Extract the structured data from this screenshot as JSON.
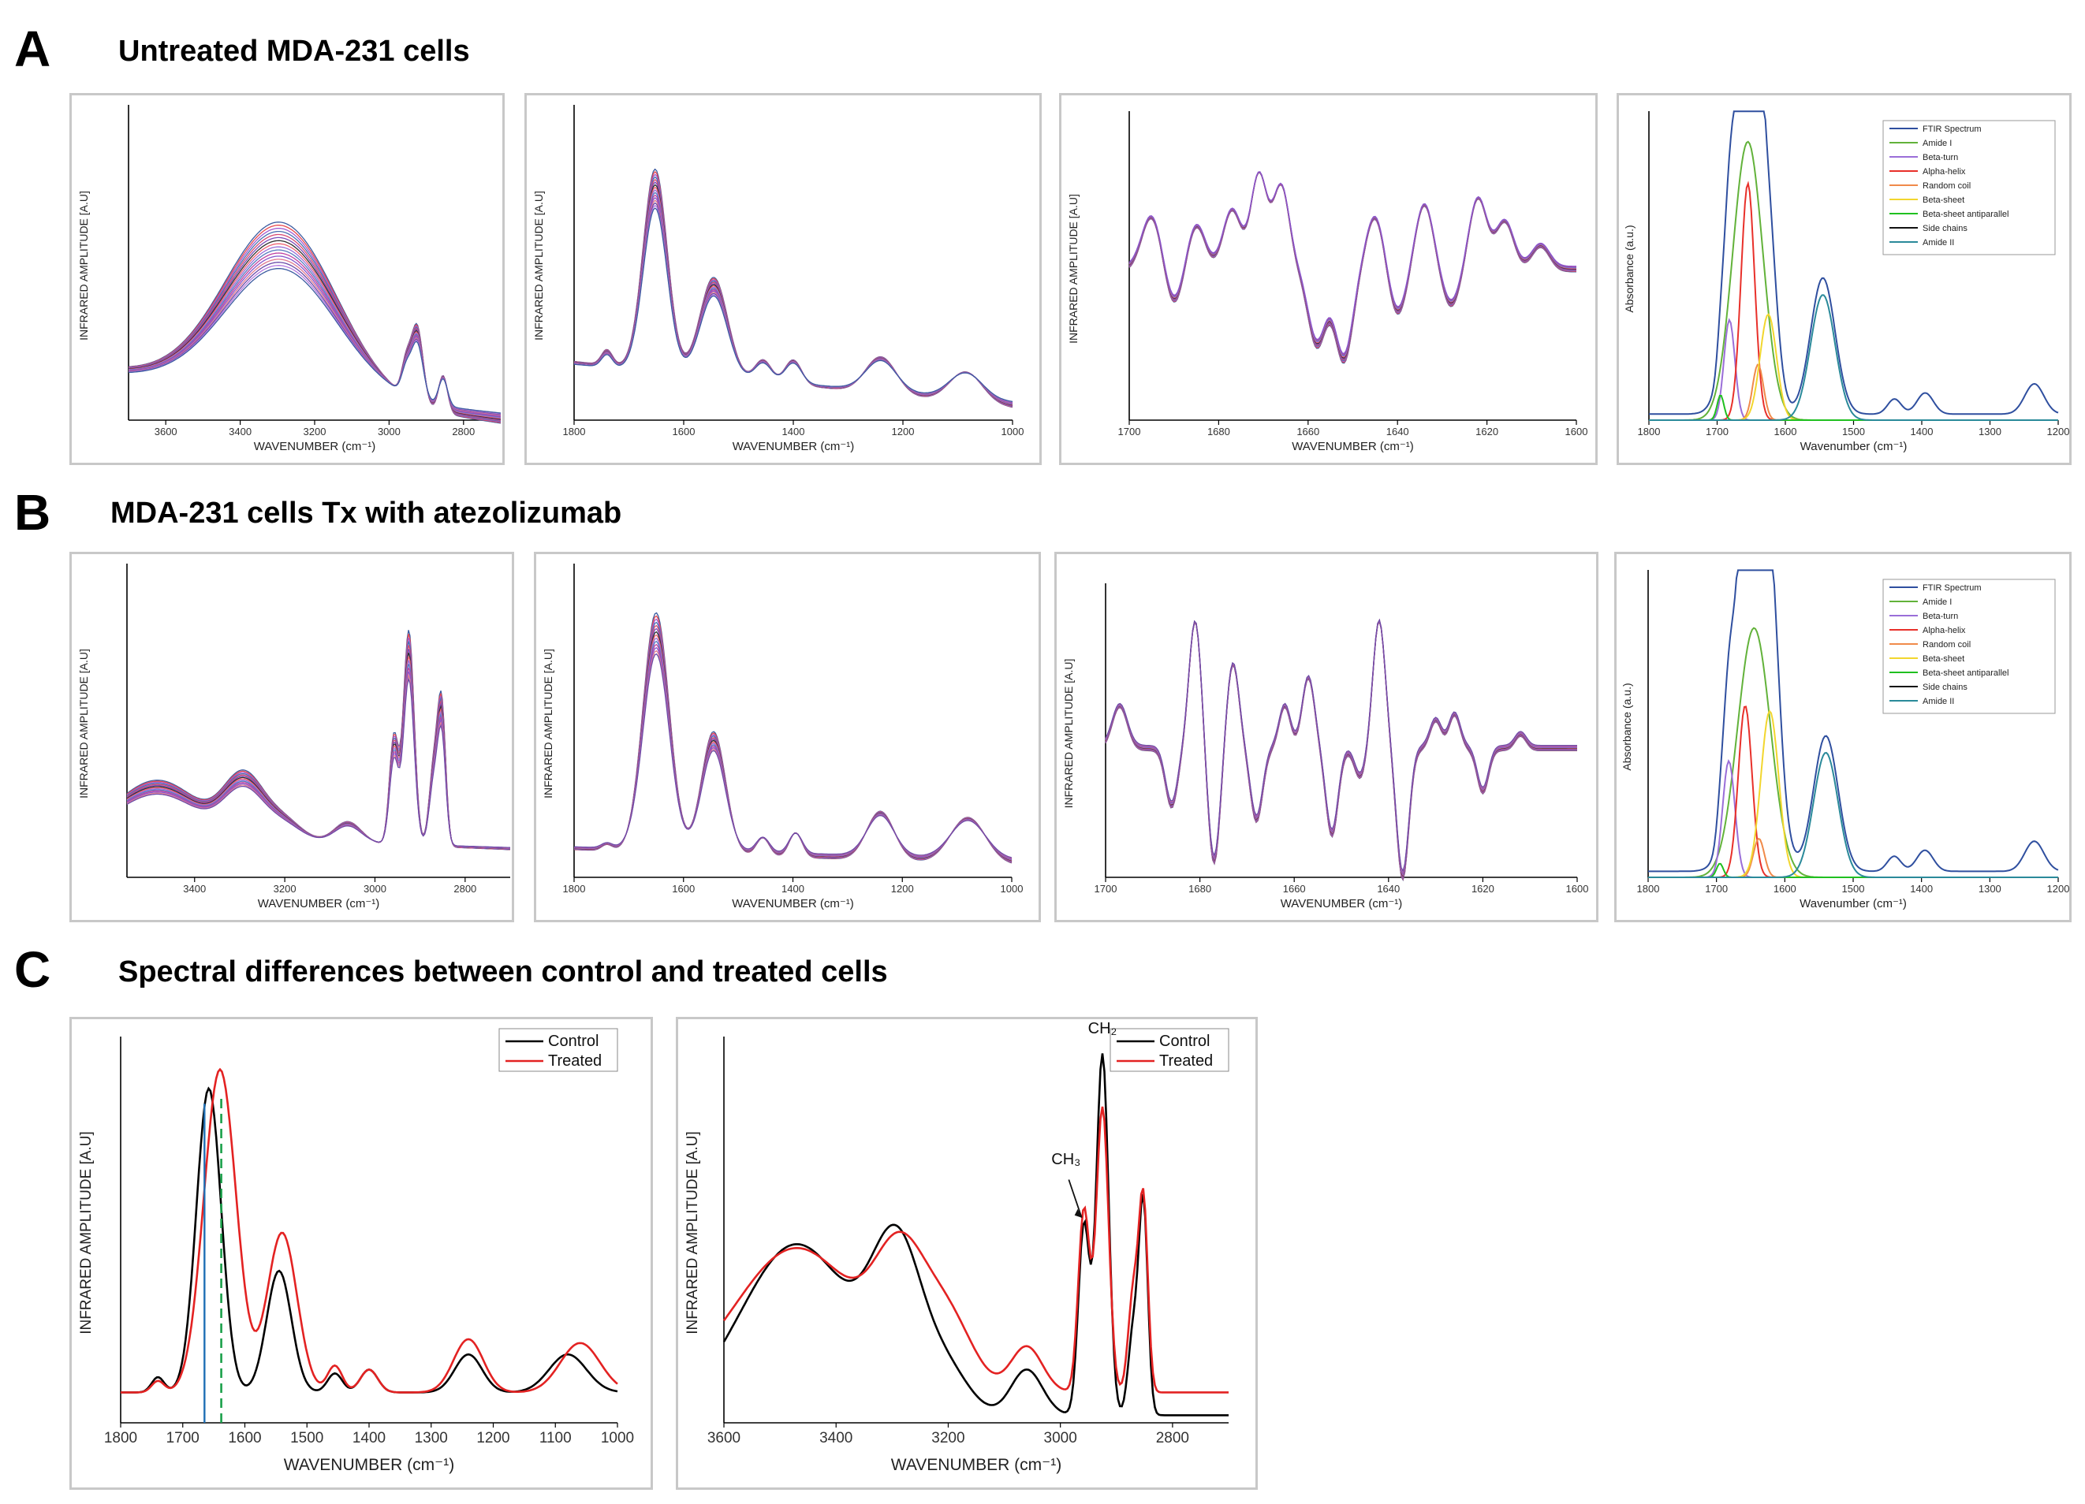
{
  "sections": [
    {
      "letter": "A",
      "title": "Untreated MDA-231 cells"
    },
    {
      "letter": "B",
      "title": "MDA-231 cells Tx with atezolizumab"
    },
    {
      "letter": "C",
      "title": "Spectral differences between control and treated cells"
    }
  ],
  "colors": {
    "spectra_palette": [
      "#3b5ba0",
      "#e8484f",
      "#a05ad0",
      "#4a6fb0",
      "#d84a72",
      "#7a4ab8",
      "#2f2f2f",
      "#f06070",
      "#9a6ed8",
      "#587ac0",
      "#c040a0",
      "#8855cc",
      "#e07a90",
      "#6a4aa8",
      "#b478e0"
    ],
    "control": "#000000",
    "treated": "#e32222",
    "vline_solid": "#1f6fb5",
    "vline_dashed": "#1aa04a"
  },
  "chart_data": [
    {
      "id": "A1",
      "type": "line",
      "title": "",
      "xlabel": "WAVENUMBER (cm⁻¹)",
      "ylabel": "INFRARED AMPLITUDE [A.U]",
      "xlim": [
        3700,
        2700
      ],
      "xticks": [
        3600,
        3400,
        3200,
        3000,
        2800
      ],
      "ylim": [
        0,
        1
      ],
      "n_series": 16,
      "peaks": [
        [
          3290,
          0.55,
          150
        ],
        [
          2955,
          0.1,
          12
        ],
        [
          2925,
          0.25,
          16
        ],
        [
          2855,
          0.12,
          12
        ]
      ],
      "base": [
        0.12,
        -0.05
      ],
      "spread": 0.3
    },
    {
      "id": "A2",
      "type": "line",
      "title": "",
      "xlabel": "WAVENUMBER (cm⁻¹)",
      "ylabel": "INFRARED AMPLITUDE [A.U]",
      "xlim": [
        1800,
        1000
      ],
      "xticks": [
        1800,
        1600,
        1400,
        1200,
        1000
      ],
      "ylim": [
        0,
        1
      ],
      "n_series": 16,
      "peaks": [
        [
          1740,
          0.05,
          10
        ],
        [
          1652,
          0.65,
          22
        ],
        [
          1545,
          0.32,
          25
        ],
        [
          1455,
          0.07,
          15
        ],
        [
          1400,
          0.08,
          15
        ],
        [
          1240,
          0.12,
          28
        ],
        [
          1085,
          0.1,
          30
        ]
      ],
      "base": [
        0.15,
        0.0
      ],
      "spread": 0.2
    },
    {
      "id": "A3",
      "type": "line",
      "title": "",
      "xlabel": "WAVENUMBER (cm⁻¹)",
      "ylabel": "INFRARED AMPLITUDE [A.U]",
      "xlim": [
        1700,
        1600
      ],
      "xticks": [
        1700,
        1680,
        1660,
        1640,
        1620,
        1600
      ],
      "ylim": [
        0,
        1
      ],
      "n_series": 12,
      "peaks": [
        [
          1695,
          0.18,
          2.2
        ],
        [
          1690,
          -0.12,
          2
        ],
        [
          1685,
          0.15,
          2
        ],
        [
          1677,
          0.2,
          2
        ],
        [
          1671,
          0.32,
          1.8
        ],
        [
          1666,
          0.28,
          1.8
        ],
        [
          1658,
          -0.25,
          2
        ],
        [
          1652,
          -0.3,
          2
        ],
        [
          1645,
          0.18,
          2
        ],
        [
          1640,
          -0.15,
          2
        ],
        [
          1634,
          0.22,
          2
        ],
        [
          1628,
          -0.12,
          2
        ],
        [
          1622,
          0.24,
          2
        ],
        [
          1616,
          0.16,
          2
        ],
        [
          1608,
          0.08,
          2
        ]
      ],
      "base": [
        0.5,
        0.5
      ],
      "spread": 0.05
    },
    {
      "id": "A4",
      "type": "line",
      "title": "",
      "xlabel": "Wavenumber (cm⁻¹)",
      "ylabel": "Absorbance (a.u.)",
      "xlim": [
        1800,
        1200
      ],
      "xticks": [
        1800,
        1700,
        1600,
        1500,
        1400,
        1300,
        1200
      ],
      "ylim": [
        0,
        1
      ],
      "legend": [
        "FTIR Spectrum",
        "Amide I",
        "Beta-turn",
        "Alpha-helix",
        "Random coil",
        "Beta-sheet",
        "Beta-sheet antiparallel",
        "Side chains",
        "Amide II"
      ],
      "legend_colors": [
        "#2f4f9f",
        "#62b23a",
        "#9a6ed8",
        "#e8302a",
        "#f08a4a",
        "#f2d62e",
        "#20c020",
        "#111111",
        "#2a8a9a"
      ],
      "bands": [
        [
          1655,
          1.0,
          22
        ],
        [
          1682,
          0.36,
          8
        ],
        [
          1655,
          0.85,
          10
        ],
        [
          1640,
          0.2,
          8
        ],
        [
          1625,
          0.38,
          12
        ],
        [
          1695,
          0.09,
          5
        ],
        [
          1545,
          0.45,
          18
        ]
      ]
    },
    {
      "id": "B1",
      "type": "line",
      "title": "",
      "xlabel": "WAVENUMBER (cm⁻¹)",
      "ylabel": "INFRARED AMPLITUDE [A.U]",
      "xlim": [
        3550,
        2700
      ],
      "xticks": [
        3400,
        3200,
        3000,
        2800
      ],
      "ylim": [
        0,
        1
      ],
      "n_series": 14,
      "peaks": [
        [
          3480,
          0.18,
          90
        ],
        [
          3290,
          0.2,
          45
        ],
        [
          3200,
          0.06,
          40
        ],
        [
          3060,
          0.07,
          30
        ],
        [
          2958,
          0.35,
          10
        ],
        [
          2925,
          0.7,
          12
        ],
        [
          2870,
          0.25,
          10
        ],
        [
          2852,
          0.45,
          9
        ]
      ],
      "base": [
        0.1,
        0.05
      ],
      "spread": 0.25
    },
    {
      "id": "B2",
      "type": "line",
      "title": "",
      "xlabel": "WAVENUMBER (cm⁻¹)",
      "ylabel": "INFRARED AMPLITUDE [A.U]",
      "xlim": [
        1800,
        1000
      ],
      "xticks": [
        1800,
        1600,
        1400,
        1200,
        1000
      ],
      "ylim": [
        0,
        1
      ],
      "n_series": 14,
      "peaks": [
        [
          1740,
          0.02,
          10
        ],
        [
          1650,
          0.78,
          24
        ],
        [
          1545,
          0.4,
          22
        ],
        [
          1455,
          0.06,
          12
        ],
        [
          1395,
          0.08,
          12
        ],
        [
          1240,
          0.16,
          25
        ],
        [
          1080,
          0.15,
          32
        ]
      ],
      "base": [
        0.05,
        0.0
      ],
      "spread": 0.2
    },
    {
      "id": "B3",
      "type": "line",
      "title": "",
      "xlabel": "WAVENUMBER (cm⁻¹)",
      "ylabel": "INFRARED AMPLITUDE [A.U]",
      "xlim": [
        1700,
        1600
      ],
      "xticks": [
        1700,
        1680,
        1660,
        1640,
        1620,
        1600
      ],
      "ylim": [
        0,
        1
      ],
      "n_series": 14,
      "peaks": [
        [
          1697,
          0.15,
          1.6
        ],
        [
          1690,
          0.0,
          1
        ],
        [
          1686,
          -0.2,
          1.3
        ],
        [
          1681,
          0.45,
          1.3
        ],
        [
          1677,
          -0.4,
          1.3
        ],
        [
          1673,
          0.3,
          1.3
        ],
        [
          1668,
          -0.25,
          1.3
        ],
        [
          1662,
          0.15,
          1.2
        ],
        [
          1657,
          0.25,
          1.3
        ],
        [
          1652,
          -0.3,
          1.3
        ],
        [
          1646,
          -0.1,
          1.2
        ],
        [
          1642,
          0.45,
          1.3
        ],
        [
          1637,
          -0.45,
          1.3
        ],
        [
          1630,
          0.1,
          1.2
        ],
        [
          1626,
          0.12,
          1.2
        ],
        [
          1620,
          -0.15,
          1.2
        ],
        [
          1612,
          0.05,
          1.2
        ]
      ],
      "base": [
        0.45,
        0.45
      ],
      "spread": 0.03
    },
    {
      "id": "B4",
      "type": "line",
      "title": "",
      "xlabel": "Wavenumber (cm⁻¹)",
      "ylabel": "Absorbance (a.u.)",
      "xlim": [
        1800,
        1200
      ],
      "xticks": [
        1800,
        1700,
        1600,
        1500,
        1400,
        1300,
        1200
      ],
      "ylim": [
        0,
        1
      ],
      "legend": [
        "FTIR Spectrum",
        "Amide I",
        "Beta-turn",
        "Alpha-helix",
        "Random coil",
        "Beta-sheet",
        "Beta-sheet antiparallel",
        "Side chains",
        "Amide II"
      ],
      "legend_colors": [
        "#2f4f9f",
        "#62b23a",
        "#9a6ed8",
        "#e8302a",
        "#f08a4a",
        "#f2d62e",
        "#20c020",
        "#111111",
        "#2a8a9a"
      ],
      "bands": [
        [
          1645,
          0.9,
          24
        ],
        [
          1682,
          0.42,
          9
        ],
        [
          1658,
          0.62,
          10
        ],
        [
          1638,
          0.14,
          8
        ],
        [
          1622,
          0.6,
          13
        ],
        [
          1695,
          0.05,
          5
        ],
        [
          1540,
          0.45,
          18
        ]
      ]
    },
    {
      "id": "C1",
      "type": "line",
      "title": "",
      "xlabel": "WAVENUMBER (cm⁻¹)",
      "ylabel": "INFRARED AMPLITUDE [A.U]",
      "xlim": [
        1800,
        1000
      ],
      "xticks": [
        1800,
        1700,
        1600,
        1500,
        1400,
        1300,
        1200,
        1100,
        1000
      ],
      "ylim": [
        0,
        1
      ],
      "legend": [
        "Control",
        "Treated"
      ],
      "vlines": [
        1665,
        1638
      ],
      "series": [
        {
          "name": "Control",
          "peaks": [
            [
              1740,
              0.04,
              10
            ],
            [
              1658,
              0.8,
              20
            ],
            [
              1545,
              0.32,
              20
            ],
            [
              1455,
              0.05,
              12
            ],
            [
              1400,
              0.06,
              14
            ],
            [
              1240,
              0.1,
              22
            ],
            [
              1080,
              0.1,
              30
            ]
          ],
          "base": 0.08
        },
        {
          "name": "Treated",
          "peaks": [
            [
              1740,
              0.03,
              10
            ],
            [
              1640,
              0.85,
              26
            ],
            [
              1540,
              0.42,
              24
            ],
            [
              1455,
              0.07,
              12
            ],
            [
              1400,
              0.06,
              14
            ],
            [
              1240,
              0.14,
              24
            ],
            [
              1060,
              0.13,
              32
            ]
          ],
          "base": 0.08
        }
      ]
    },
    {
      "id": "C2",
      "type": "line",
      "title": "",
      "xlabel": "WAVENUMBER (cm⁻¹)",
      "ylabel": "INFRARED AMPLITUDE [A.U]",
      "xlim": [
        3600,
        2700
      ],
      "xticks": [
        3600,
        3400,
        3200,
        3000,
        2800
      ],
      "ylim": [
        0,
        1
      ],
      "legend": [
        "Control",
        "Treated"
      ],
      "annotations": [
        "CH₂",
        "CH₃"
      ],
      "series": [
        {
          "name": "Control",
          "peaks": [
            [
              3470,
              0.45,
              100
            ],
            [
              3290,
              0.4,
              45
            ],
            [
              3200,
              0.1,
              40
            ],
            [
              3060,
              0.12,
              28
            ],
            [
              2958,
              0.5,
              10
            ],
            [
              2925,
              0.95,
              11
            ],
            [
              2870,
              0.22,
              9
            ],
            [
              2852,
              0.55,
              8
            ]
          ],
          "base": 0.02
        },
        {
          "name": "Treated",
          "peaks": [
            [
              3470,
              0.38,
              110
            ],
            [
              3285,
              0.3,
              45
            ],
            [
              3200,
              0.18,
              45
            ],
            [
              3060,
              0.12,
              28
            ],
            [
              2958,
              0.48,
              10
            ],
            [
              2925,
              0.75,
              11
            ],
            [
              2870,
              0.26,
              9
            ],
            [
              2852,
              0.5,
              8
            ]
          ],
          "base": 0.08
        }
      ]
    }
  ]
}
